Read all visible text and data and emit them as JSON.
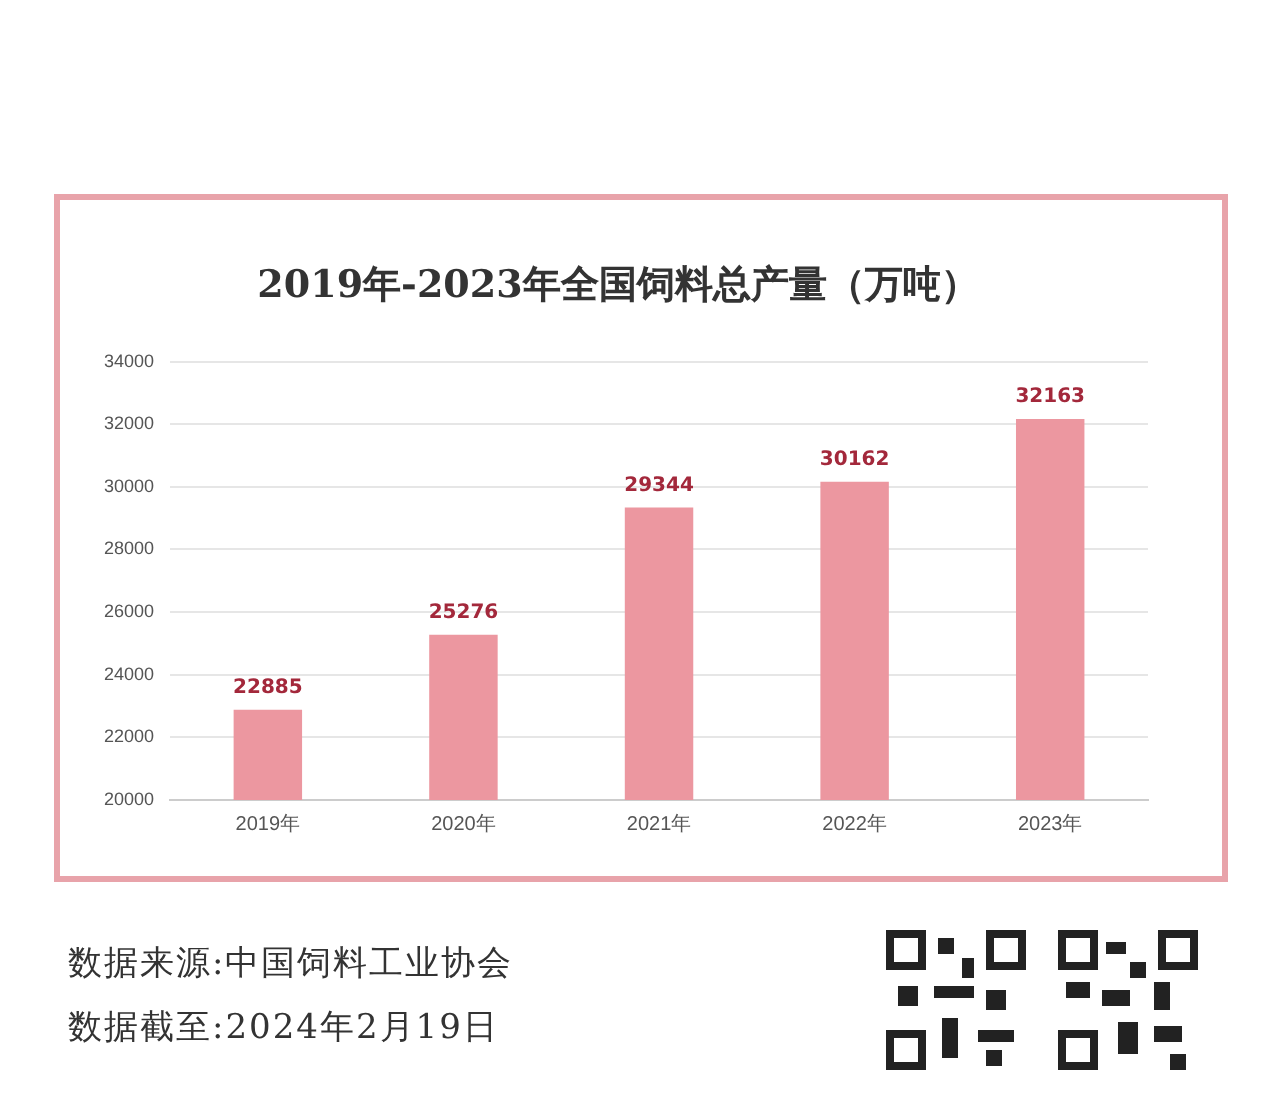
{
  "chart_data": {
    "type": "bar",
    "title": "2019年-2023年全国饲料总产量（万吨）",
    "categories": [
      "2019年",
      "2020年",
      "2021年",
      "2022年",
      "2023年"
    ],
    "values": [
      22885,
      25276,
      29344,
      30162,
      32163
    ],
    "color": "#ec97a0",
    "ylim": [
      20000,
      34000
    ],
    "yticks": [
      20000,
      22000,
      24000,
      26000,
      28000,
      30000,
      32000,
      34000
    ],
    "grid": "y",
    "legend": false,
    "data_labels": true,
    "annotations": [
      "数据来源:中国饲料工业协会",
      "数据截至:2024年2月19日"
    ]
  }
}
